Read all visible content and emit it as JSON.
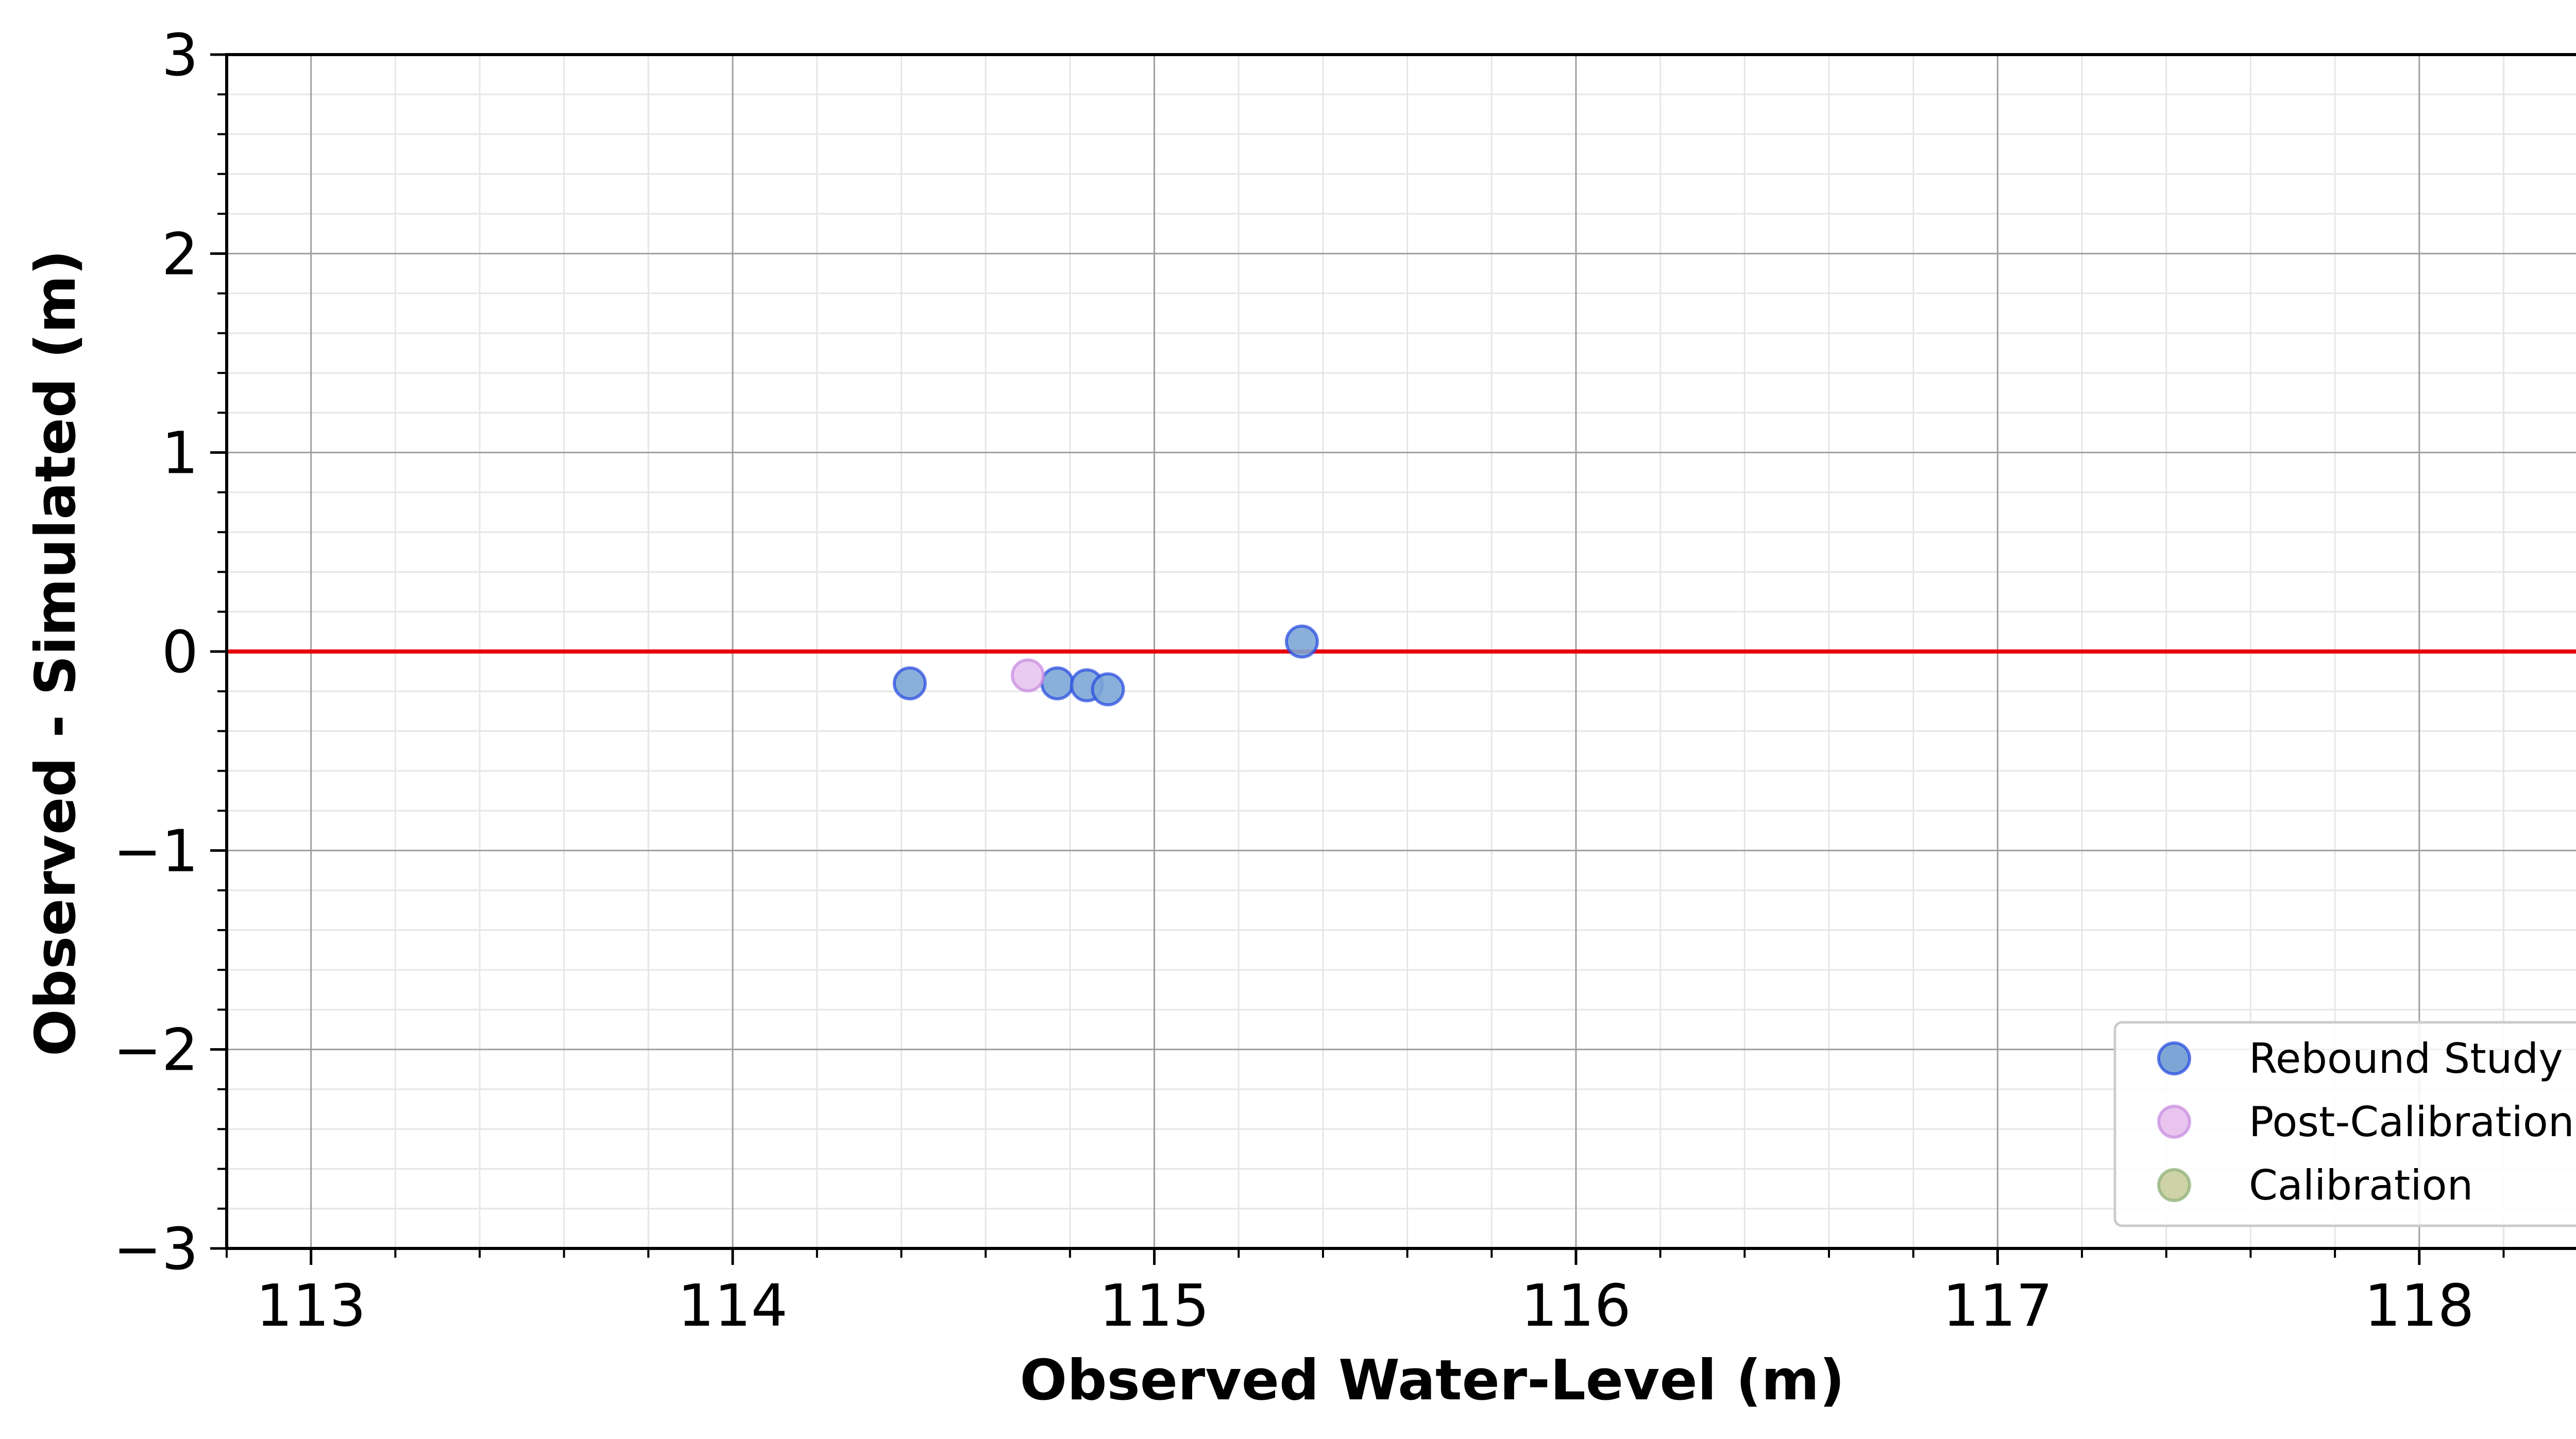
{
  "chart_data": {
    "type": "scatter",
    "title": "",
    "xlabel": "Observed Water-Level (m)",
    "ylabel": "Observed - Simulated (m)",
    "xlim": [
      112.8,
      118.5
    ],
    "ylim": [
      -3,
      3
    ],
    "x_ticks": [
      113,
      114,
      115,
      116,
      117,
      118
    ],
    "x_tick_labels": [
      "113",
      "114",
      "115",
      "116",
      "117",
      "118"
    ],
    "y_ticks": [
      -3,
      -2,
      -1,
      0,
      1,
      2,
      3
    ],
    "y_tick_labels": [
      "−3",
      "−2",
      "−1",
      "0",
      "1",
      "2",
      "3"
    ],
    "grid": true,
    "minor_grid": true,
    "reference_line": {
      "y": 0,
      "color": "#e8000b"
    },
    "legend_position": "lower-right",
    "series": [
      {
        "name": "Rebound Study",
        "color": "#7da6d6",
        "edge_color": "#2b4fe0",
        "points": [
          {
            "x": 114.42,
            "y": -0.16
          },
          {
            "x": 114.77,
            "y": -0.16
          },
          {
            "x": 114.84,
            "y": -0.17
          },
          {
            "x": 114.89,
            "y": -0.19
          },
          {
            "x": 115.35,
            "y": 0.05
          }
        ]
      },
      {
        "name": "Post-Calibration",
        "color": "#e8c4ef",
        "edge_color": "#c98ee0",
        "points": [
          {
            "x": 114.7,
            "y": -0.12
          }
        ]
      },
      {
        "name": "Calibration",
        "color": "#cdd3a6",
        "edge_color": "#8fb07a",
        "points": []
      }
    ]
  }
}
